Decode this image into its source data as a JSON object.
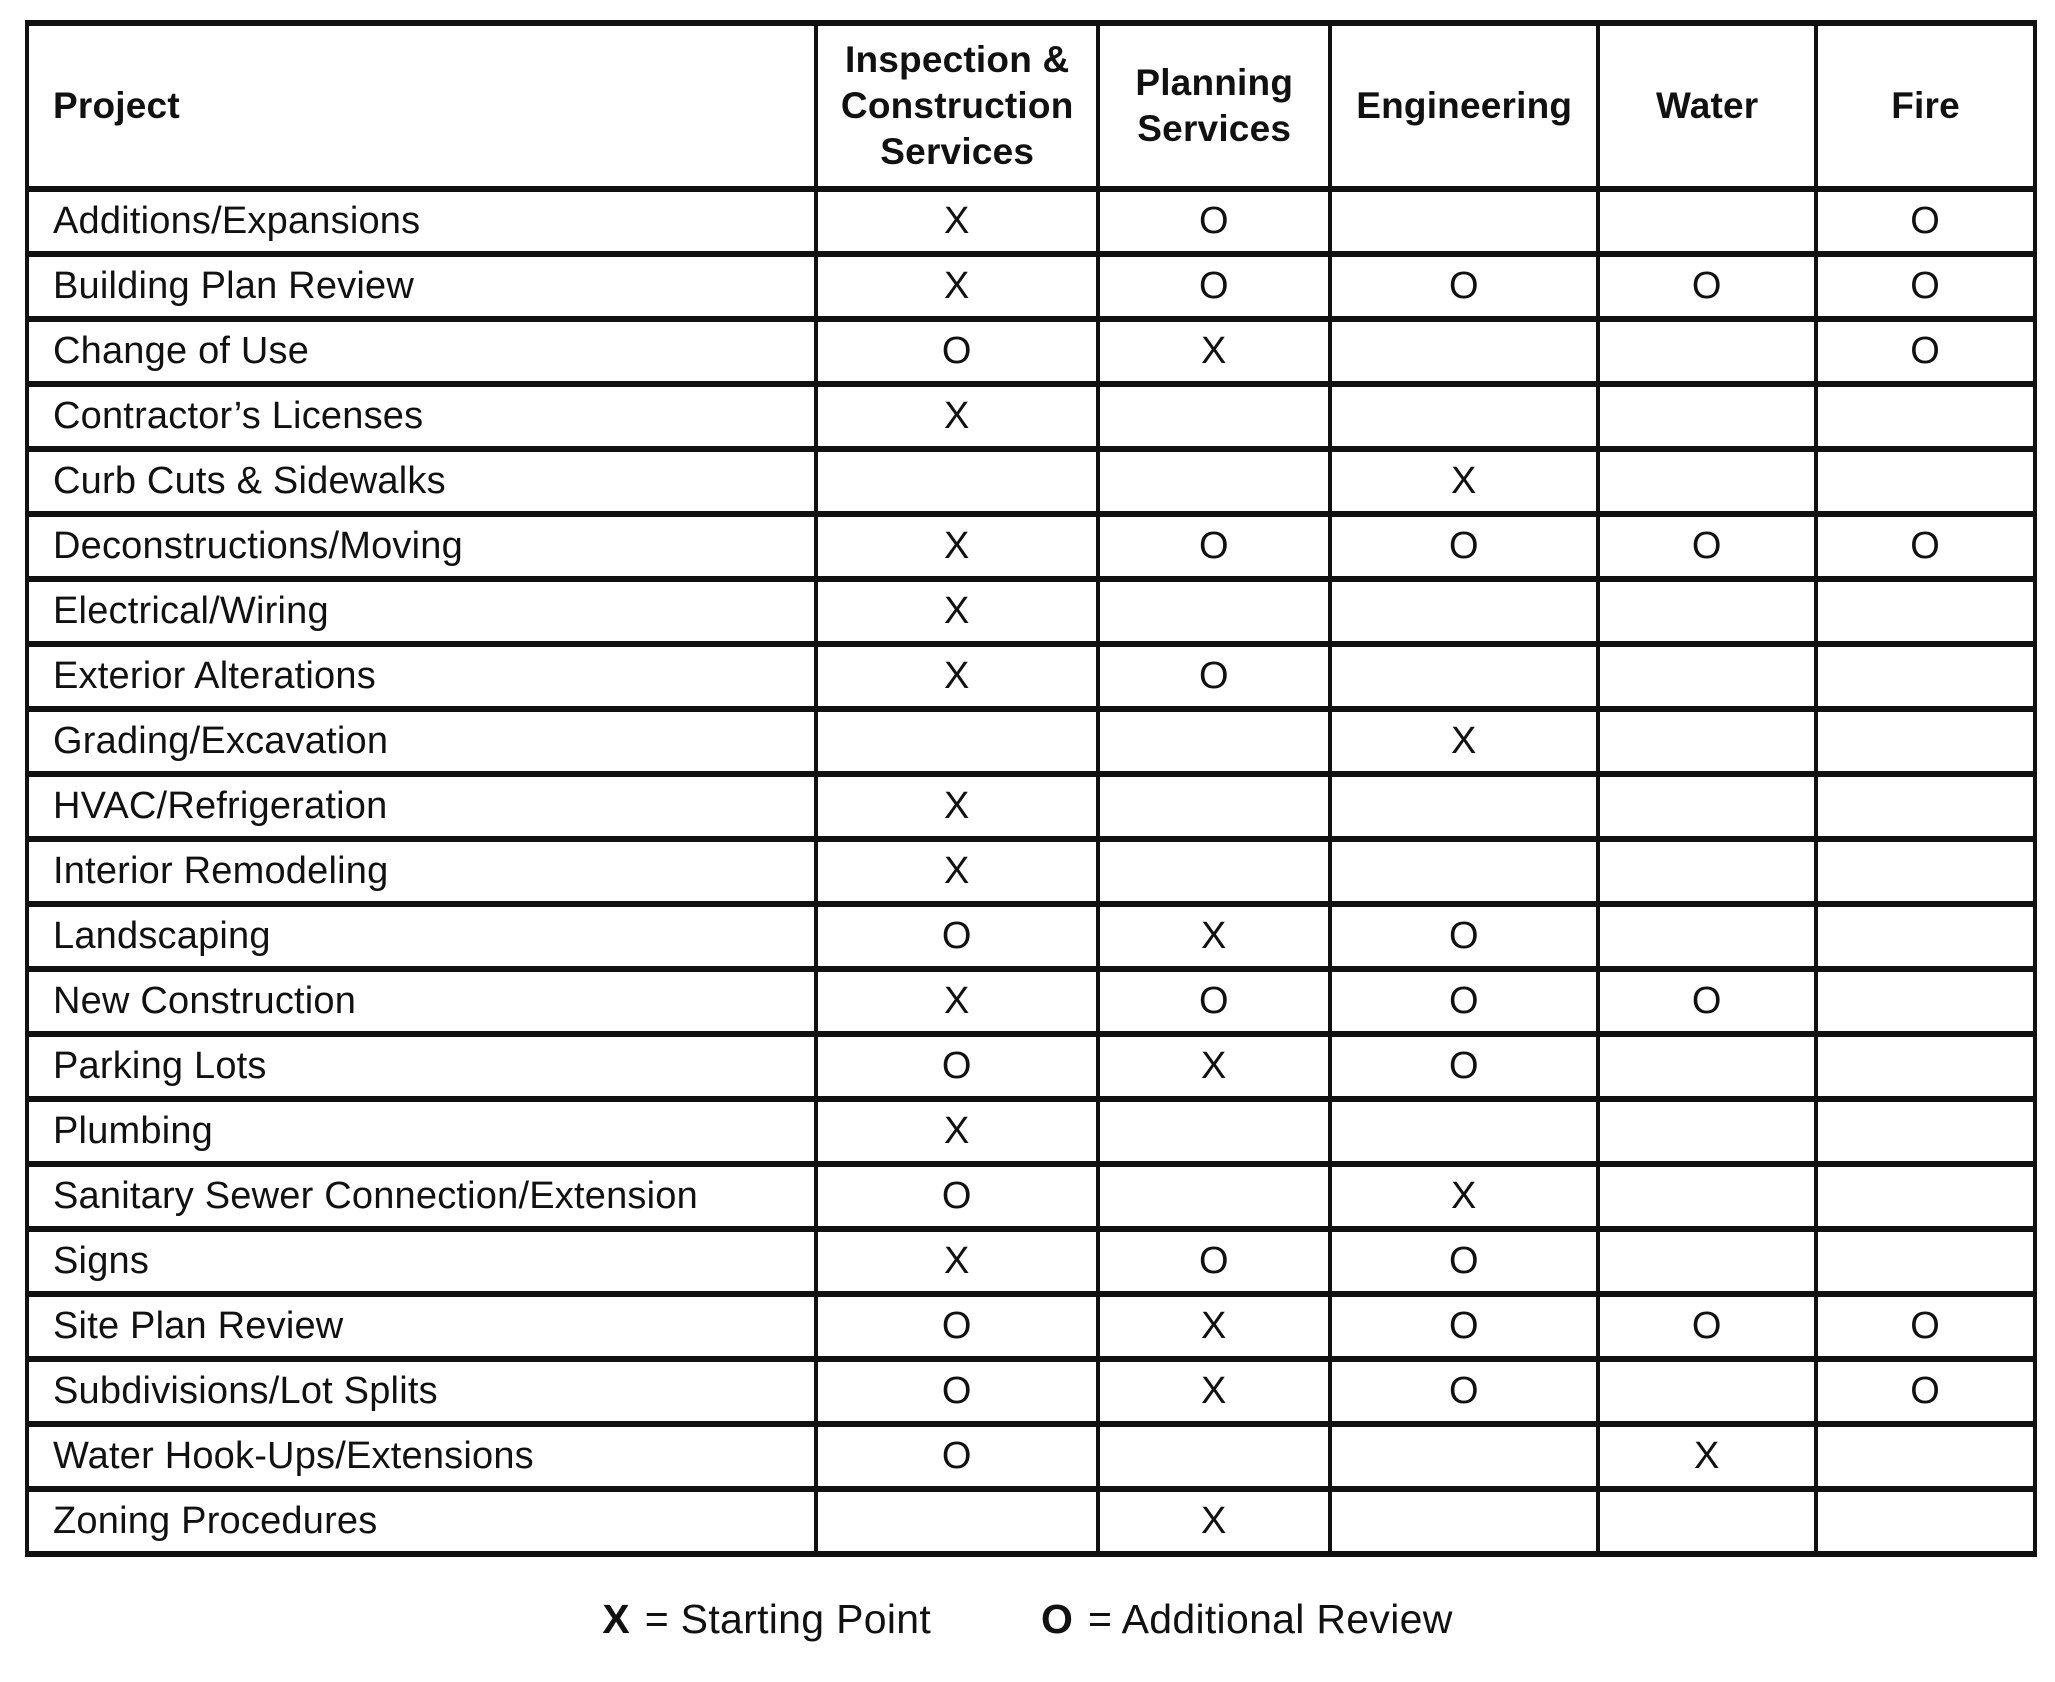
{
  "table": {
    "columns": [
      "Project",
      "Inspection & Construction Services",
      "Planning Services",
      "Engineering",
      "Water",
      "Fire"
    ],
    "rows": [
      {
        "project": "Additions/Expansions",
        "marks": [
          "X",
          "O",
          "",
          "",
          "O"
        ]
      },
      {
        "project": "Building Plan Review",
        "marks": [
          "X",
          "O",
          "O",
          "O",
          "O"
        ]
      },
      {
        "project": "Change of Use",
        "marks": [
          "O",
          "X",
          "",
          "",
          "O"
        ]
      },
      {
        "project": "Contractor’s Licenses",
        "marks": [
          "X",
          "",
          "",
          "",
          ""
        ]
      },
      {
        "project": "Curb Cuts & Sidewalks",
        "marks": [
          "",
          "",
          "X",
          "",
          ""
        ]
      },
      {
        "project": "Deconstructions/Moving",
        "marks": [
          "X",
          "O",
          "O",
          "O",
          "O"
        ]
      },
      {
        "project": "Electrical/Wiring",
        "marks": [
          "X",
          "",
          "",
          "",
          ""
        ]
      },
      {
        "project": "Exterior Alterations",
        "marks": [
          "X",
          "O",
          "",
          "",
          ""
        ]
      },
      {
        "project": "Grading/Excavation",
        "marks": [
          "",
          "",
          "X",
          "",
          ""
        ]
      },
      {
        "project": "HVAC/Refrigeration",
        "marks": [
          "X",
          "",
          "",
          "",
          ""
        ]
      },
      {
        "project": "Interior Remodeling",
        "marks": [
          "X",
          "",
          "",
          "",
          ""
        ]
      },
      {
        "project": "Landscaping",
        "marks": [
          "O",
          "X",
          "O",
          "",
          ""
        ]
      },
      {
        "project": "New Construction",
        "marks": [
          "X",
          "O",
          "O",
          "O",
          ""
        ]
      },
      {
        "project": "Parking Lots",
        "marks": [
          "O",
          "X",
          "O",
          "",
          ""
        ]
      },
      {
        "project": "Plumbing",
        "marks": [
          "X",
          "",
          "",
          "",
          ""
        ]
      },
      {
        "project": "Sanitary Sewer Connection/Extension",
        "marks": [
          "O",
          "",
          "X",
          "",
          ""
        ]
      },
      {
        "project": "Signs",
        "marks": [
          "X",
          "O",
          "O",
          "",
          ""
        ]
      },
      {
        "project": "Site Plan Review",
        "marks": [
          "O",
          "X",
          "O",
          "O",
          "O"
        ]
      },
      {
        "project": "Subdivisions/Lot Splits",
        "marks": [
          "O",
          "X",
          "O",
          "",
          "O"
        ]
      },
      {
        "project": "Water Hook-Ups/Extensions",
        "marks": [
          "O",
          "",
          "",
          "X",
          ""
        ]
      },
      {
        "project": "Zoning Procedures",
        "marks": [
          "",
          "X",
          "",
          "",
          ""
        ]
      }
    ]
  },
  "legend": {
    "items": [
      {
        "symbol": "X",
        "label": "= Starting Point"
      },
      {
        "symbol": "O",
        "label": "= Additional Review"
      }
    ]
  },
  "colors": {
    "ink": "#111111",
    "background": "#ffffff"
  }
}
